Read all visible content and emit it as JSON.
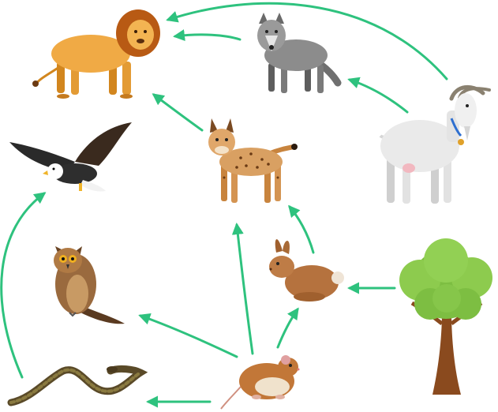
{
  "diagram": {
    "type": "food-web",
    "arrow_color": "#2EC27E",
    "organisms": [
      {
        "id": "lion",
        "icon": "lion-icon"
      },
      {
        "id": "wolf",
        "icon": "wolf-icon"
      },
      {
        "id": "eagle",
        "icon": "eagle-icon"
      },
      {
        "id": "lynx",
        "icon": "lynx-icon"
      },
      {
        "id": "goat",
        "icon": "goat-icon"
      },
      {
        "id": "owl",
        "icon": "owl-icon"
      },
      {
        "id": "rabbit",
        "icon": "rabbit-icon"
      },
      {
        "id": "tree",
        "icon": "tree-icon"
      },
      {
        "id": "snake",
        "icon": "snake-icon"
      },
      {
        "id": "hamster",
        "icon": "hamster-icon"
      }
    ],
    "links": [
      {
        "from": "goat",
        "to": "lion"
      },
      {
        "from": "wolf",
        "to": "lion"
      },
      {
        "from": "goat",
        "to": "wolf"
      },
      {
        "from": "lynx",
        "to": "lion"
      },
      {
        "from": "rabbit",
        "to": "lynx"
      },
      {
        "from": "hamster",
        "to": "lynx"
      },
      {
        "from": "tree",
        "to": "rabbit"
      },
      {
        "from": "hamster",
        "to": "rabbit"
      },
      {
        "from": "hamster",
        "to": "owl"
      },
      {
        "from": "hamster",
        "to": "snake"
      },
      {
        "from": "snake",
        "to": "eagle"
      }
    ]
  }
}
